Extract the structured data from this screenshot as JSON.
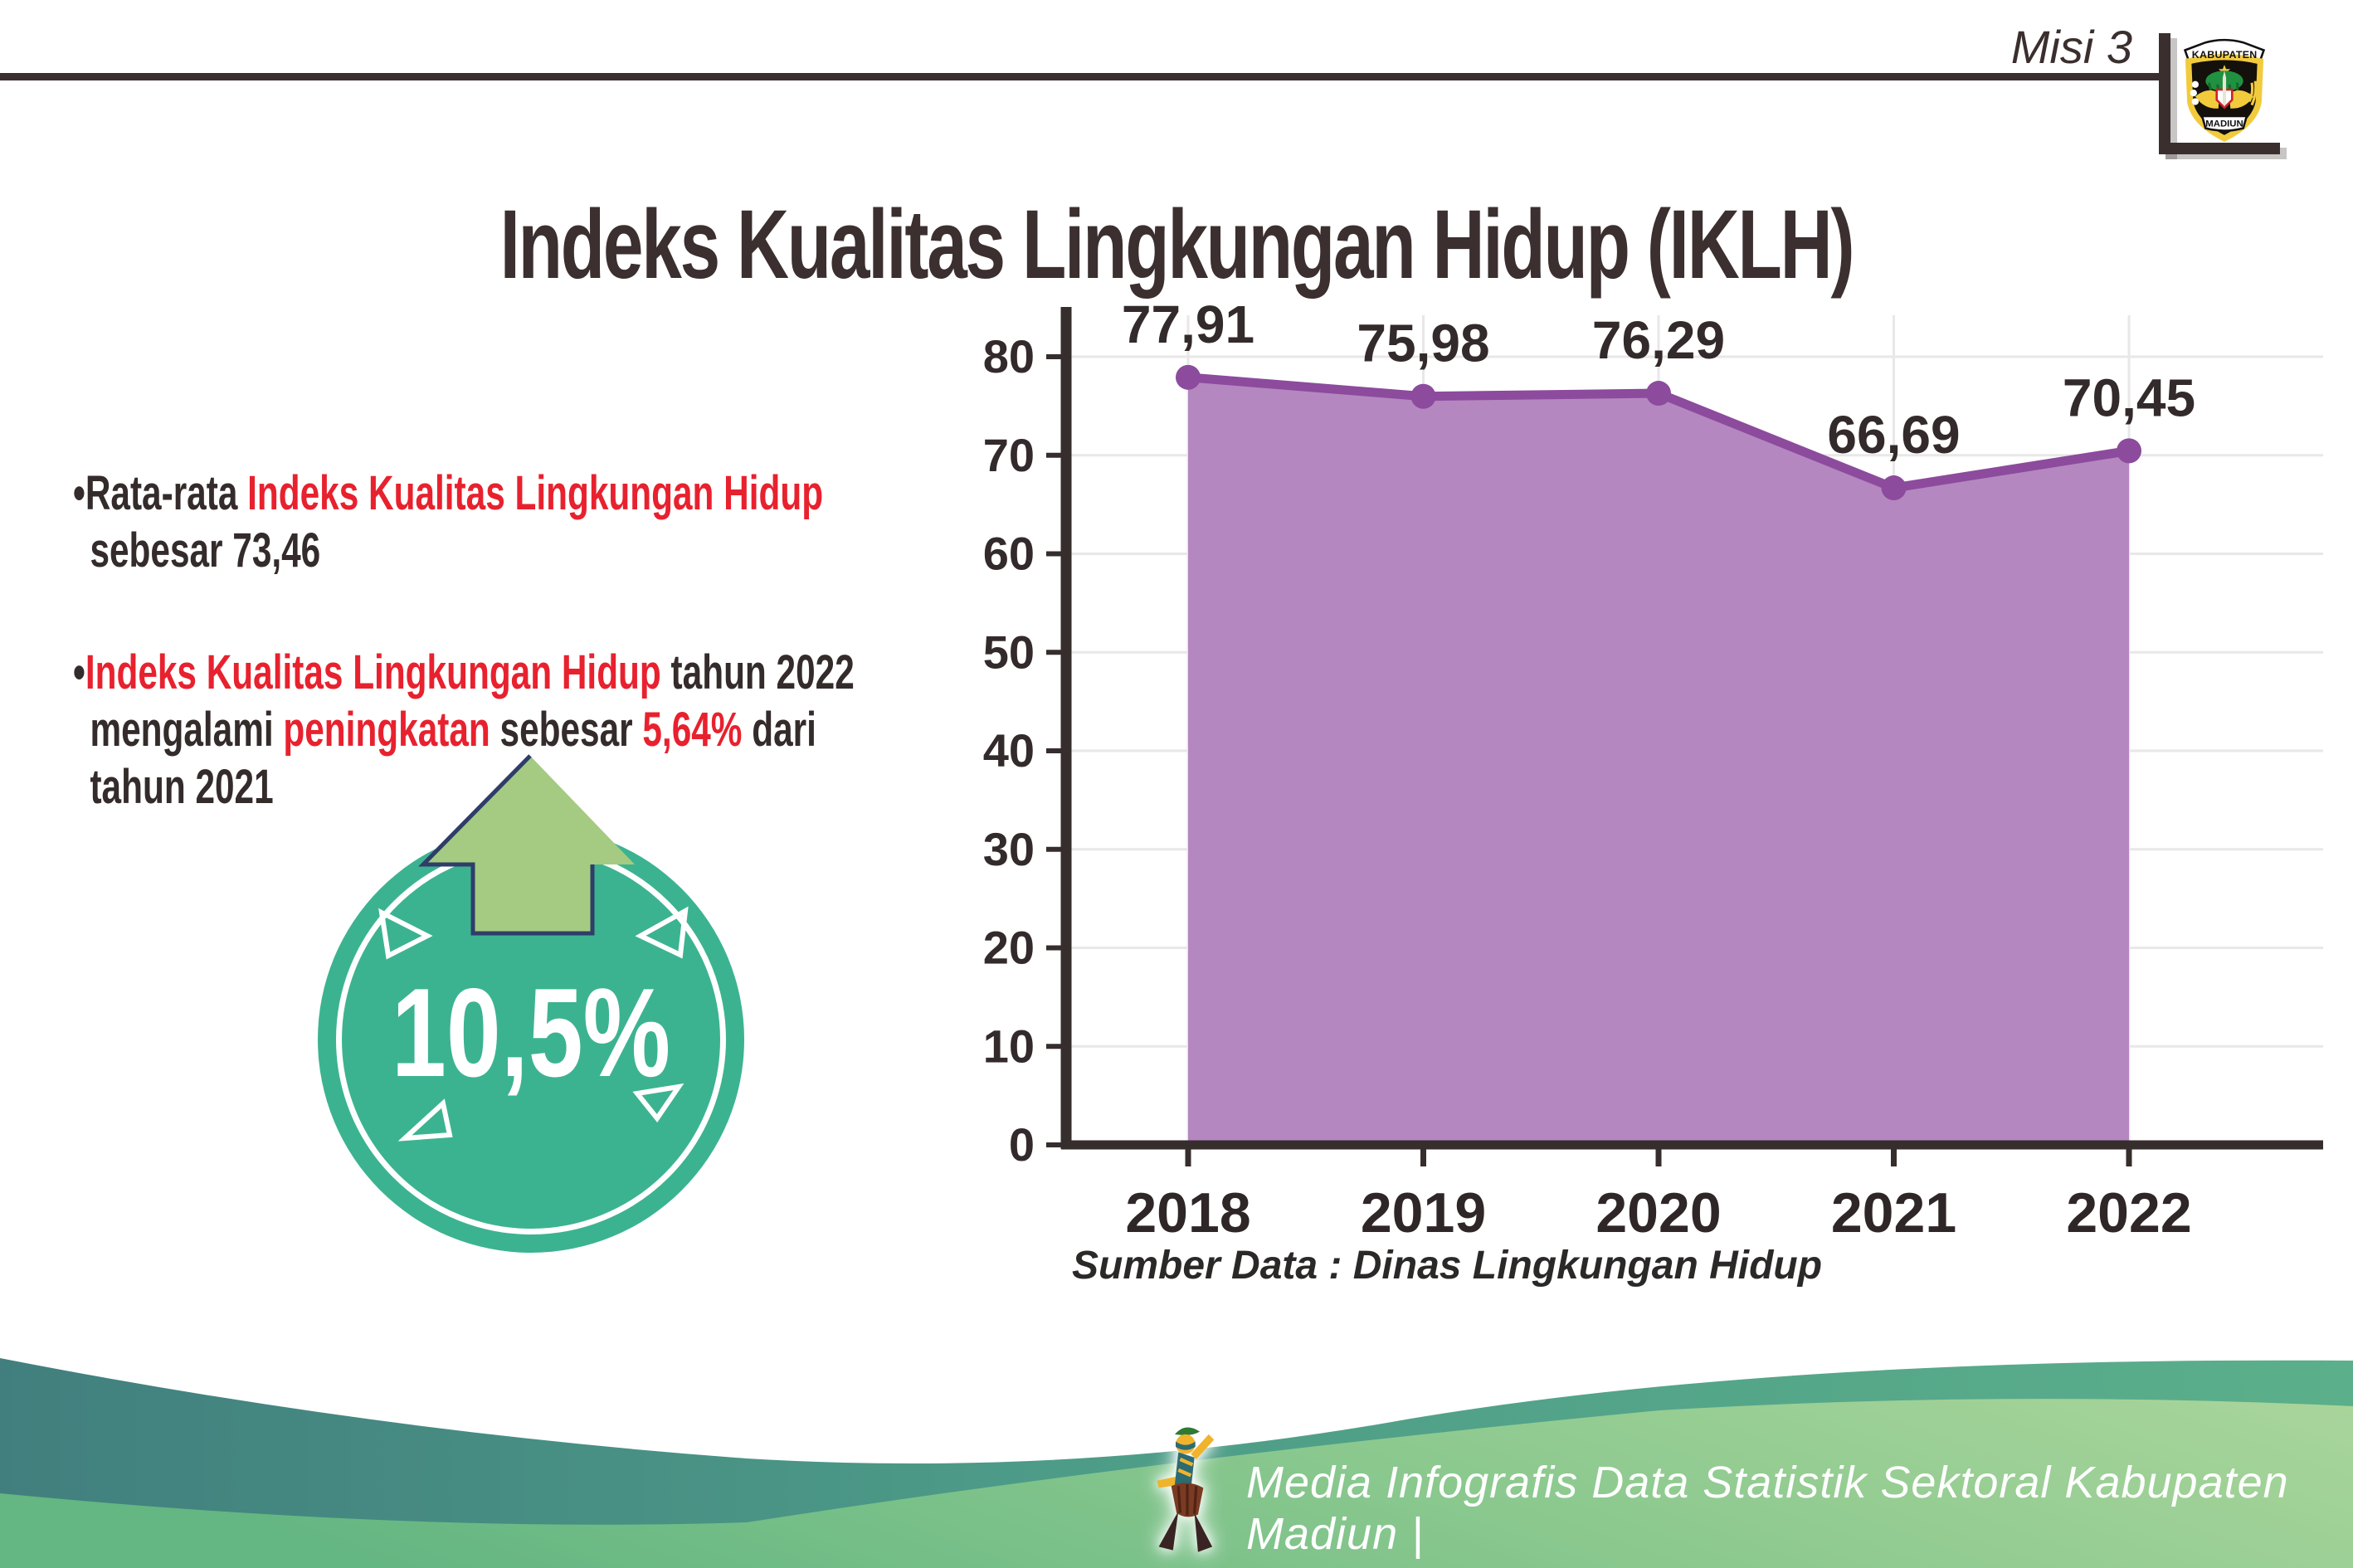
{
  "header": {
    "mission_label": "Misi 3",
    "logo": {
      "top_text": "KABUPATEN",
      "bottom_text": "MADIUN"
    }
  },
  "title": "Indeks Kualitas Lingkungan Hidup (IKLH)",
  "insights": {
    "marker": "•",
    "bullet1": {
      "part1": "Rata-rata ",
      "part2": "Indeks Kualitas Lingkungan Hidup",
      "part3": "sebesar 73,46"
    },
    "bullet2": {
      "part1": "Indeks Kualitas Lingkungan Hidup",
      "part2": " tahun 2022",
      "part3": "mengalami ",
      "part4": "peningkatan",
      "part5": " sebesar ",
      "part6": "5,64%",
      "part7": " dari",
      "part8": "tahun 2021"
    }
  },
  "badge": {
    "value": "10,5%"
  },
  "chart_data": {
    "type": "area",
    "title": "",
    "categories": [
      "2018",
      "2019",
      "2020",
      "2021",
      "2022"
    ],
    "values": [
      77.91,
      75.98,
      76.29,
      66.69,
      70.45
    ],
    "value_labels": [
      "77,91",
      "75,98",
      "76,29",
      "66,69",
      "70,45"
    ],
    "xlabel": "",
    "ylabel": "",
    "ylim": [
      0,
      80
    ],
    "ytick_step": 10,
    "grid": true,
    "legend_position": "none",
    "colors": {
      "area_fill": "#b587c0",
      "line": "#8c4b9d",
      "marker": "#8c4b9d",
      "grid": "#e9e7e8",
      "axis": "#362d2d",
      "label": "#332a2b"
    }
  },
  "source_note": "Sumber Data : Dinas Lingkungan Hidup",
  "footer": {
    "credit": "Media Infografis Data Statistik Sektoral Kabupaten Madiun |"
  },
  "colors": {
    "accent_red": "#e8212e",
    "text_dark": "#342b2b",
    "badge_teal": "#3cb390",
    "arrow_green": "#a5ca82",
    "arrow_outline_navy": "#2e3d69",
    "wave_teal": "#4d9c88",
    "wave_green": "#84c48c"
  }
}
